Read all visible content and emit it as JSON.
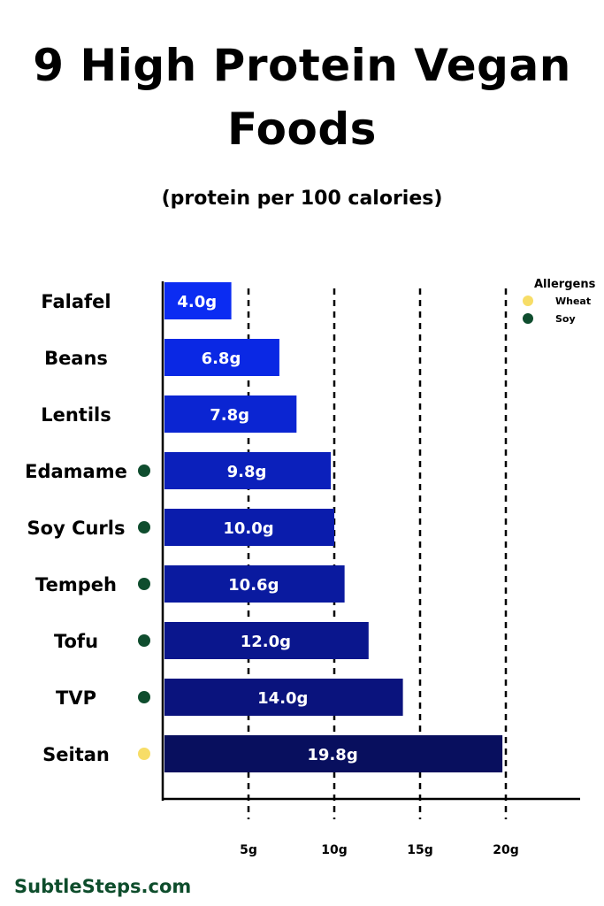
{
  "title": "9 High Protein Vegan\nFoods",
  "subtitle": "(protein per 100 calories)",
  "footer": "SubtleSteps.com",
  "legend": {
    "title": "Allergens",
    "items": [
      {
        "label": "Wheat",
        "color": "#f7dd67"
      },
      {
        "label": "Soy",
        "color": "#0f4d2e"
      }
    ]
  },
  "chart_data": {
    "type": "bar",
    "orientation": "horizontal",
    "categories": [
      "Falafel",
      "Beans",
      "Lentils",
      "Edamame",
      "Soy Curls",
      "Tempeh",
      "Tofu",
      "TVP",
      "Seitan"
    ],
    "values": [
      4.0,
      6.8,
      7.8,
      9.8,
      10.0,
      10.6,
      12.0,
      14.0,
      19.8
    ],
    "value_labels": [
      "4.0g",
      "6.8g",
      "7.8g",
      "9.8g",
      "10.0g",
      "10.6g",
      "12.0g",
      "14.0g",
      "19.8g"
    ],
    "allergens": [
      "",
      "",
      "",
      "Soy",
      "Soy",
      "Soy",
      "Soy",
      "Soy",
      "Wheat"
    ],
    "bar_colors": [
      "#0b2cf2",
      "#0a28e4",
      "#0b25d2",
      "#0b20bb",
      "#0a1cac",
      "#0a1a9f",
      "#0a168d",
      "#0a137d",
      "#080f5e"
    ],
    "xticks": [
      5,
      10,
      15,
      20
    ],
    "xtick_labels": [
      "5g",
      "10g",
      "15g",
      "20g"
    ],
    "xlim": [
      0,
      24
    ],
    "grid": "dashed vertical at ticks",
    "legend_position": "top-right"
  }
}
